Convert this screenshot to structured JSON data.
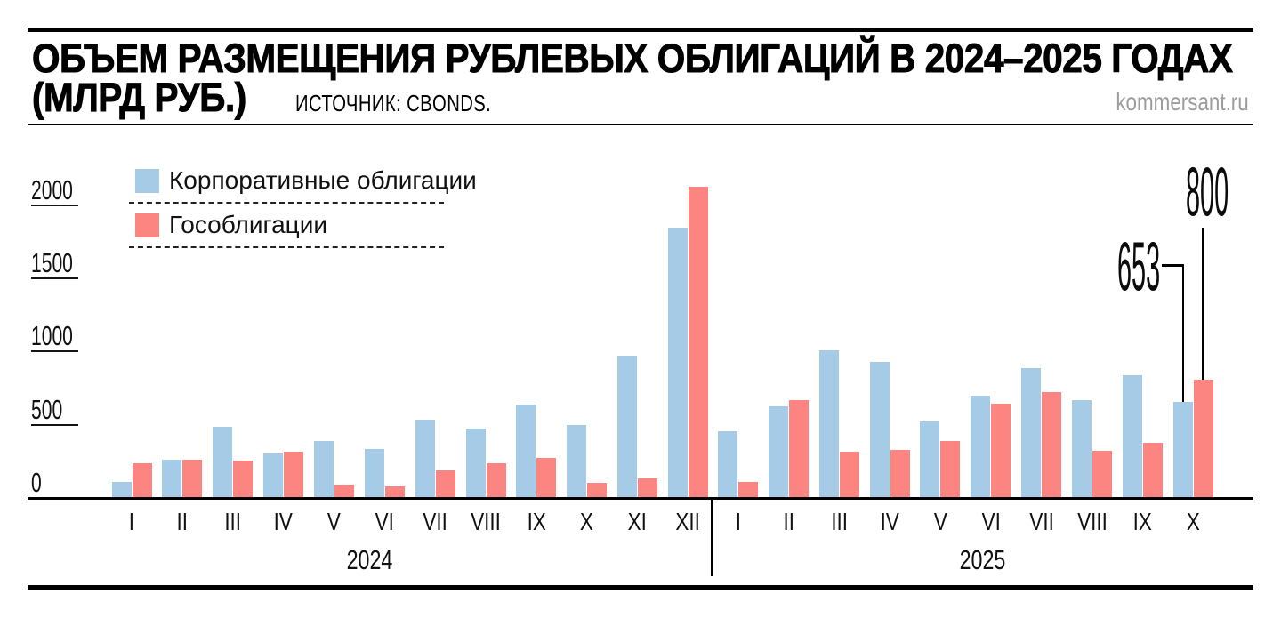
{
  "header": {
    "title_line1": "ОБЪЕМ РАЗМЕЩЕНИЯ РУБЛЕВЫХ ОБЛИГАЦИЙ В 2024–2025 ГОДАХ",
    "title_line2": "(МЛРД РУБ.)",
    "source": "ИСТОЧНИК: CBONDS.",
    "watermark": "kommersant.ru"
  },
  "colors": {
    "corporate": "#a5cbe6",
    "government": "#fc8481",
    "ink": "#111111",
    "watermark_gray": "#9c9c9c"
  },
  "legend": [
    {
      "name": "corporate",
      "label": "Корпоративные облигации",
      "color": "#a5cbe6"
    },
    {
      "name": "government",
      "label": "Гособлигации",
      "color": "#fc8481"
    }
  ],
  "chart_data": {
    "type": "bar",
    "title": "Объем размещения рублевых облигаций в 2024–2025 годах",
    "unit": "млрд руб.",
    "ylabel": "",
    "xlabel": "",
    "ylim": [
      0,
      2200
    ],
    "y_ticks": [
      2000,
      1500,
      1000,
      500,
      0
    ],
    "grid": false,
    "legend_position": "top-left",
    "series_names": [
      "Корпоративные облигации",
      "Гособлигации"
    ],
    "groups": [
      {
        "year": "2024",
        "months": [
          "I",
          "II",
          "III",
          "IV",
          "V",
          "VI",
          "VII",
          "VIII",
          "IX",
          "X",
          "XI",
          "XII"
        ],
        "corporate": [
          105,
          255,
          480,
          295,
          380,
          330,
          530,
          465,
          630,
          495,
          965,
          1840
        ],
        "government": [
          230,
          255,
          250,
          310,
          85,
          70,
          185,
          230,
          265,
          100,
          130,
          2120
        ]
      },
      {
        "year": "2025",
        "months": [
          "I",
          "II",
          "III",
          "IV",
          "V",
          "VI",
          "VII",
          "VIII",
          "IX",
          "X"
        ],
        "corporate": [
          450,
          620,
          1000,
          925,
          515,
          695,
          880,
          660,
          835,
          653
        ],
        "government": [
          105,
          665,
          310,
          325,
          385,
          640,
          715,
          315,
          370,
          800
        ]
      }
    ],
    "annotations": [
      {
        "text": "653",
        "year": "2025",
        "month": "X",
        "series": "corporate",
        "value": 653
      },
      {
        "text": "800",
        "year": "2025",
        "month": "X",
        "series": "government",
        "value": 800
      }
    ]
  }
}
